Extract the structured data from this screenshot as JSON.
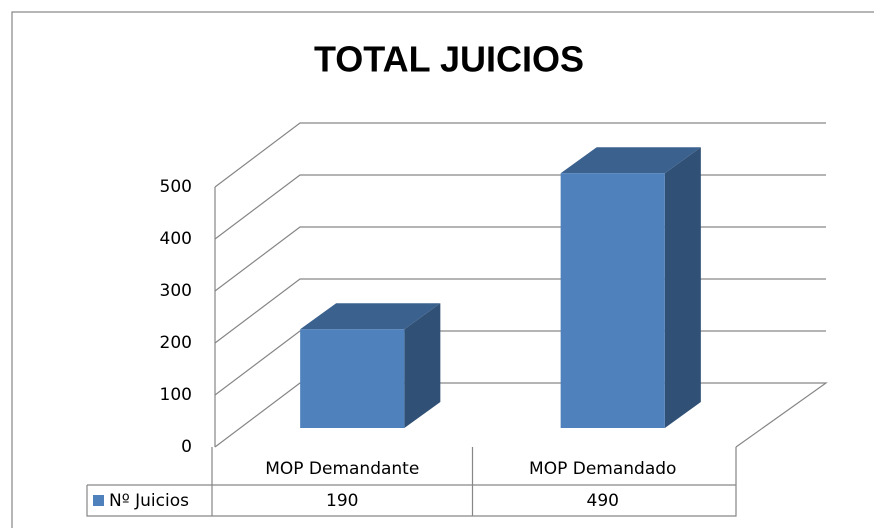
{
  "chart_data": {
    "type": "bar",
    "title": "TOTAL JUICIOS",
    "categories": [
      "MOP Demandante",
      "MOP Demandado"
    ],
    "series": [
      {
        "name": "Nº Juicios",
        "color": "#4f81bd",
        "values": [
          190,
          490
        ]
      }
    ],
    "ylim": [
      0,
      500
    ],
    "yticks": [
      0,
      100,
      200,
      300,
      400,
      500
    ],
    "grid": true
  }
}
